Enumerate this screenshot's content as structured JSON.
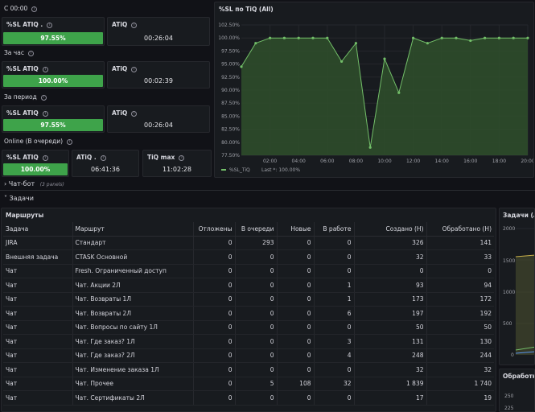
{
  "sla": {
    "heading_now": "С 00:00",
    "heading_hour": "За час",
    "heading_period": "За период",
    "heading_online": "Online (В очереди)",
    "now": {
      "sl_title": "%SL ATIQ .",
      "sl_value": "97.55%",
      "sl_fill": 1.0,
      "atiq_title": "ATiQ",
      "atiq_value": "00:26:04"
    },
    "hour": {
      "sl_title": "%SL ATIQ",
      "sl_value": "100.00%",
      "sl_fill": 1.0,
      "atiq_title": "ATiQ",
      "atiq_value": "00:02:39"
    },
    "period": {
      "sl_title": "%SL ATIQ",
      "sl_value": "97.55%",
      "sl_fill": 1.0,
      "atiq_title": "ATiQ",
      "atiq_value": "00:26:04"
    },
    "online": {
      "sl_title": "%SL ATIQ",
      "sl_value": "100.00%",
      "sl_fill": 1.0,
      "atiq_title": "ATiQ .",
      "atiq_value": "06:41:36",
      "max_title": "TiQ max",
      "max_value": "11:02:28"
    },
    "bar_color": "#3ea34a"
  },
  "chart_data": {
    "type": "area",
    "title": "%SL по TiQ (All)",
    "x": [
      "00:00",
      "01:00",
      "02:00",
      "03:00",
      "04:00",
      "05:00",
      "06:00",
      "07:00",
      "08:00",
      "09:00",
      "10:00",
      "11:00",
      "12:00",
      "13:00",
      "14:00",
      "15:00",
      "16:00",
      "17:00",
      "18:00",
      "19:00",
      "20:00"
    ],
    "series": [
      {
        "name": "%SL_TiQ",
        "values": [
          94.5,
          99,
          100,
          100,
          100,
          100,
          100,
          95.5,
          99,
          79,
          96,
          89.5,
          100,
          99,
          100,
          100,
          99.5,
          100,
          100,
          100,
          100
        ]
      }
    ],
    "x_ticks": [
      "02:00",
      "04:00",
      "06:00",
      "08:00",
      "10:00",
      "12:00",
      "14:00",
      "16:00",
      "18:00",
      "20:00"
    ],
    "y_ticks": [
      "77.50%",
      "80.00%",
      "82.50%",
      "85.00%",
      "87.50%",
      "90.00%",
      "92.50%",
      "95.00%",
      "97.50%",
      "100.00%",
      "102.50%"
    ],
    "ylim": [
      77.5,
      102.5
    ],
    "legend_label": "%SL_TiQ",
    "legend_stat": "Last *: 100.00%",
    "color": "#73bf69",
    "grid": true
  },
  "rows_collapsed": {
    "label": "Чат-бот",
    "count": "(3 panels)"
  },
  "rows_expanded": {
    "label": "Задачи"
  },
  "routes": {
    "title": "Маршруты",
    "columns": [
      "Задача",
      "Маршрут",
      "Отложены",
      "В очереди",
      "Новые",
      "В работе",
      "Создано (Н)",
      "Обработано (Н)"
    ],
    "rows": [
      [
        "JIRA",
        "Стандарт",
        "0",
        "293",
        "0",
        "0",
        "326",
        "141"
      ],
      [
        "Внешняя задача",
        "CTASK Основной",
        "0",
        "0",
        "0",
        "0",
        "32",
        "33"
      ],
      [
        "Чат",
        "Fresh. Ограниченный доступ",
        "0",
        "0",
        "0",
        "0",
        "0",
        "0"
      ],
      [
        "Чат",
        "Чат. Акции 2Л",
        "0",
        "0",
        "0",
        "1",
        "93",
        "94"
      ],
      [
        "Чат",
        "Чат. Возвраты 1Л",
        "0",
        "0",
        "0",
        "1",
        "173",
        "172"
      ],
      [
        "Чат",
        "Чат. Возвраты 2Л",
        "0",
        "0",
        "0",
        "6",
        "197",
        "192"
      ],
      [
        "Чат",
        "Чат. Вопросы по сайту 1Л",
        "0",
        "0",
        "0",
        "0",
        "50",
        "50"
      ],
      [
        "Чат",
        "Чат. Где заказ? 1Л",
        "0",
        "0",
        "0",
        "3",
        "131",
        "130"
      ],
      [
        "Чат",
        "Чат. Где заказ? 2Л",
        "0",
        "0",
        "0",
        "4",
        "248",
        "244"
      ],
      [
        "Чат",
        "Чат. Изменение заказа 1Л",
        "0",
        "0",
        "0",
        "0",
        "32",
        "32"
      ],
      [
        "Чат",
        "Чат. Прочее",
        "0",
        "5",
        "108",
        "32",
        "1 839",
        "1 740"
      ],
      [
        "Чат",
        "Чат. Сертификаты 2Л",
        "0",
        "0",
        "0",
        "0",
        "17",
        "19"
      ]
    ]
  },
  "side1": {
    "title": "Задачи (All)",
    "y_ticks": [
      "2000",
      "1500",
      "1000",
      "500",
      "0"
    ]
  },
  "side2": {
    "title": "Обработка",
    "y_ticks": [
      "250",
      "225"
    ]
  }
}
